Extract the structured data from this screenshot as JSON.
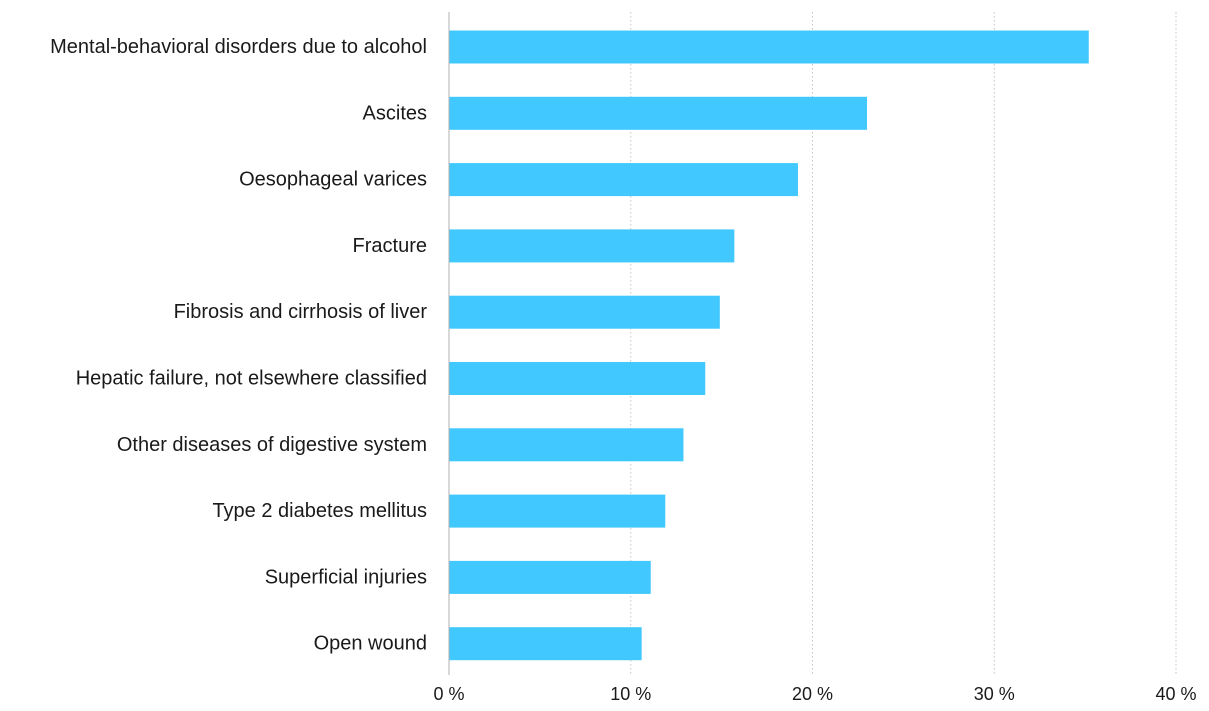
{
  "chart_data": {
    "type": "bar",
    "orientation": "horizontal",
    "categories": [
      "Mental-behavioral disorders due to alcohol",
      "Ascites",
      "Oesophageal varices",
      "Fracture",
      "Fibrosis and cirrhosis of liver",
      "Hepatic failure, not elsewhere classified",
      "Other diseases of digestive system",
      "Type 2 diabetes mellitus",
      "Superficial injuries",
      "Open wound"
    ],
    "values": [
      35.2,
      23.0,
      19.2,
      15.7,
      14.9,
      14.1,
      12.9,
      11.9,
      11.1,
      10.6
    ],
    "xlim": [
      0,
      40
    ],
    "xticks": [
      0,
      10,
      20,
      30,
      40
    ],
    "xtick_labels": [
      "0 %",
      "10 %",
      "20 %",
      "30 %",
      "40 %"
    ],
    "title": "",
    "xlabel": "",
    "ylabel": "",
    "grid": "vertical-dotted",
    "bar_color": "#40c8ff",
    "axis_color": "#b0b0b0",
    "grid_color": "#c4c4c4"
  }
}
